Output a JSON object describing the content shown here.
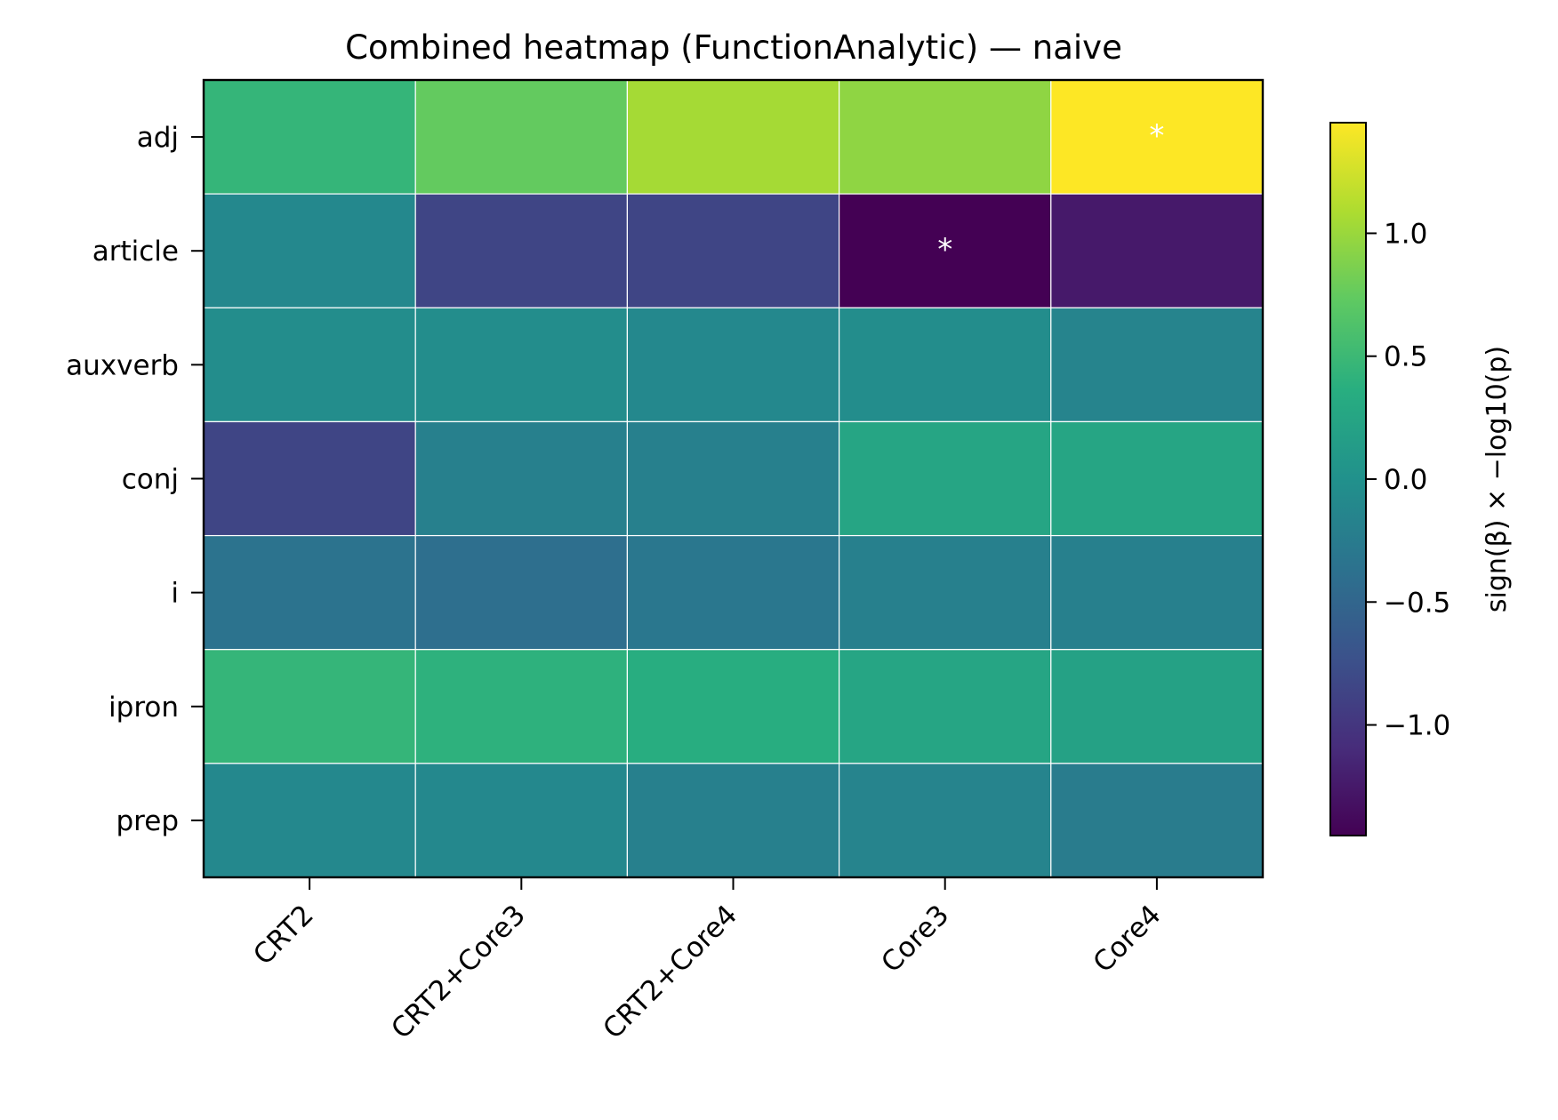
{
  "chart_data": {
    "type": "heatmap",
    "title": "Combined heatmap (FunctionAnalytic) — naive",
    "rows": [
      "adj",
      "article",
      "auxverb",
      "conj",
      "i",
      "ipron",
      "prep"
    ],
    "columns": [
      "CRT2",
      "CRT2+Core3",
      "CRT2+Core4",
      "Core3",
      "Core4"
    ],
    "values": [
      [
        0.45,
        0.75,
        1.05,
        0.95,
        1.45
      ],
      [
        -0.1,
        -0.85,
        -0.85,
        -1.45,
        -1.25
      ],
      [
        -0.05,
        -0.05,
        -0.1,
        -0.05,
        -0.15
      ],
      [
        -0.85,
        -0.2,
        -0.2,
        0.25,
        0.25
      ],
      [
        -0.35,
        -0.4,
        -0.3,
        -0.2,
        -0.2
      ],
      [
        0.45,
        0.4,
        0.35,
        0.25,
        0.2
      ],
      [
        -0.1,
        -0.1,
        -0.2,
        -0.15,
        -0.25
      ]
    ],
    "significance": [
      [
        "",
        "",
        "",
        "",
        "*"
      ],
      [
        "",
        "",
        "",
        "*",
        ""
      ],
      [
        "",
        "",
        "",
        "",
        ""
      ],
      [
        "",
        "",
        "",
        "",
        ""
      ],
      [
        "",
        "",
        "",
        "",
        ""
      ],
      [
        "",
        "",
        "",
        "",
        ""
      ],
      [
        "",
        "",
        "",
        "",
        ""
      ]
    ],
    "colorscale": "viridis",
    "vmin": -1.45,
    "vmax": 1.45,
    "colorbar": {
      "label": "sign(β) × −log10(p)",
      "ticks": [
        1.0,
        0.5,
        0.0,
        -0.5,
        -1.0
      ],
      "tick_labels": [
        "1.0",
        "0.5",
        "0.0",
        "−0.5",
        "−1.0"
      ]
    }
  }
}
